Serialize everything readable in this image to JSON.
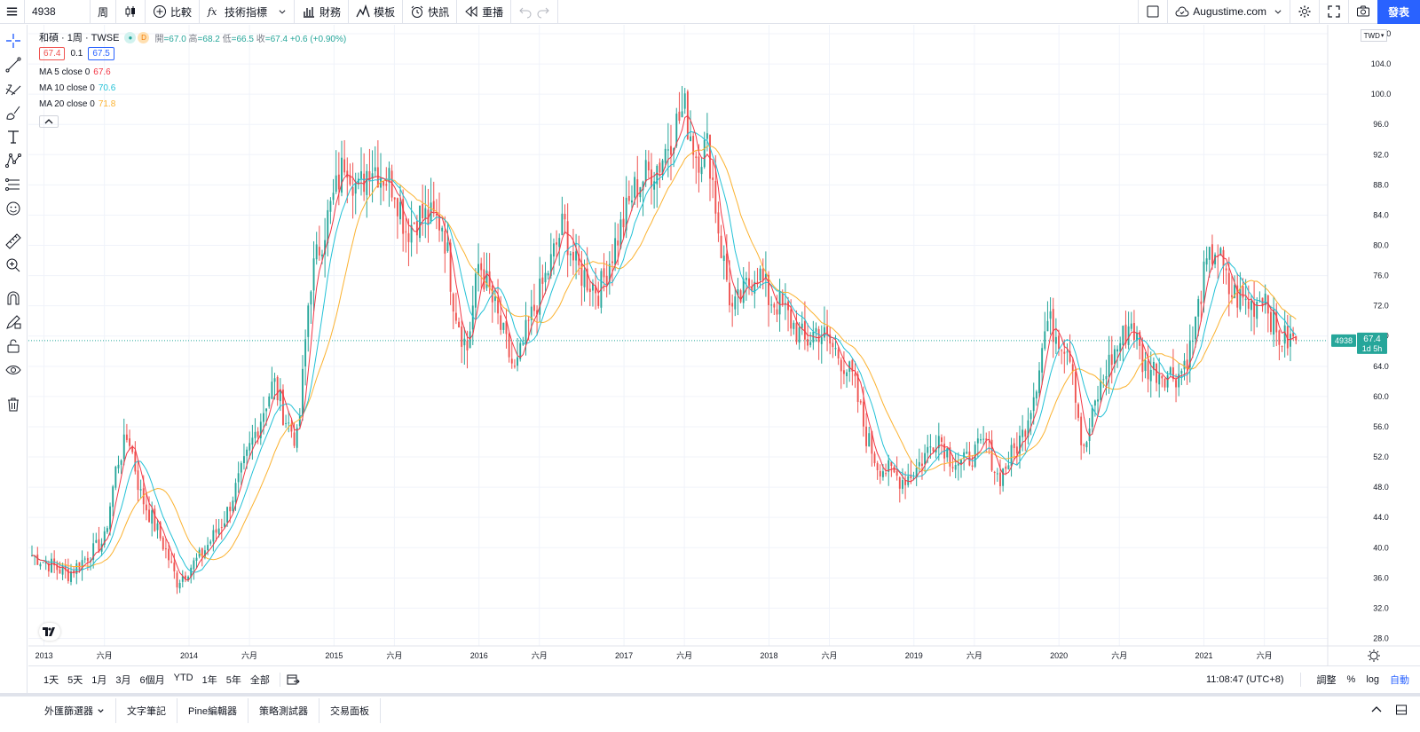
{
  "toolbar": {
    "symbol": "4938",
    "interval": "周",
    "compare_label": "比較",
    "indicators_label": "技術指標",
    "financials_label": "財務",
    "templates_label": "模板",
    "alerts_label": "快訊",
    "replay_label": "重播",
    "layout_name": "Augustime.com",
    "publish_label": "發表"
  },
  "legend": {
    "title": "和碩 · 1周 · TWSE",
    "dot_d": "D",
    "ohlc": {
      "open_label": "開",
      "open": "=67.0",
      "high_label": "高",
      "high": "=68.2",
      "low_label": "低",
      "low": "=66.5",
      "close_label": "收",
      "close": "=67.4",
      "change": "+0.6 (+0.90%)"
    },
    "bid": "67.4",
    "spread": "0.1",
    "ask": "67.5",
    "ma5_label": "MA 5 close 0",
    "ma5_value": "67.6",
    "ma10_label": "MA 10 close 0",
    "ma10_value": "70.6",
    "ma20_label": "MA 20 close 0",
    "ma20_value": "71.8",
    "collapse_icon": "chevron-up-icon"
  },
  "price_axis": {
    "currency": "TWD",
    "ticks": [
      "28.0",
      "32.0",
      "36.0",
      "40.0",
      "44.0",
      "48.0",
      "52.0",
      "56.0",
      "60.0",
      "64.0",
      "68.0",
      "72.0",
      "76.0",
      "80.0",
      "84.0",
      "88.0",
      "92.0",
      "96.0",
      "100.0",
      "104.0",
      "108.0"
    ],
    "last_symbol": "4938",
    "last_price": "67.4",
    "countdown": "1d 5h"
  },
  "time_axis": {
    "labels": [
      "2013",
      "六月",
      "2014",
      "六月",
      "2015",
      "六月",
      "2016",
      "六月",
      "2017",
      "六月",
      "2018",
      "六月",
      "2019",
      "六月",
      "2020",
      "六月",
      "2021",
      "六月"
    ]
  },
  "chart_data": {
    "type": "candlestick",
    "symbol": "4938",
    "ylim": [
      27,
      108
    ],
    "log_scale": false,
    "grid": true,
    "colors": {
      "up": "#26a69a",
      "down": "#ef5350",
      "ma5": "#f23645",
      "ma10": "#22c1d6",
      "ma20": "#fbb230"
    },
    "series_anchors": [
      {
        "d": "2012-12",
        "c": 39
      },
      {
        "d": "2013-03",
        "c": 36.5
      },
      {
        "d": "2013-06",
        "c": 41
      },
      {
        "d": "2013-07",
        "c": 51
      },
      {
        "d": "2013-08",
        "c": 55
      },
      {
        "d": "2013-09",
        "c": 47
      },
      {
        "d": "2013-11",
        "c": 40
      },
      {
        "d": "2013-12",
        "c": 35.5
      },
      {
        "d": "2014-02",
        "c": 39
      },
      {
        "d": "2014-04",
        "c": 44
      },
      {
        "d": "2014-06",
        "c": 53
      },
      {
        "d": "2014-08",
        "c": 62
      },
      {
        "d": "2014-09",
        "c": 57
      },
      {
        "d": "2014-10",
        "c": 54
      },
      {
        "d": "2014-11",
        "c": 75
      },
      {
        "d": "2014-12",
        "c": 81
      },
      {
        "d": "2015-02",
        "c": 92
      },
      {
        "d": "2015-03",
        "c": 87
      },
      {
        "d": "2015-04",
        "c": 91
      },
      {
        "d": "2015-06",
        "c": 88
      },
      {
        "d": "2015-07",
        "c": 82
      },
      {
        "d": "2015-08",
        "c": 84
      },
      {
        "d": "2015-10",
        "c": 83
      },
      {
        "d": "2015-11",
        "c": 72
      },
      {
        "d": "2015-12",
        "c": 66
      },
      {
        "d": "2016-01",
        "c": 78
      },
      {
        "d": "2016-03",
        "c": 68
      },
      {
        "d": "2016-04",
        "c": 63
      },
      {
        "d": "2016-05",
        "c": 69
      },
      {
        "d": "2016-07",
        "c": 78
      },
      {
        "d": "2016-08",
        "c": 83
      },
      {
        "d": "2016-09",
        "c": 77
      },
      {
        "d": "2016-11",
        "c": 74
      },
      {
        "d": "2016-12",
        "c": 79
      },
      {
        "d": "2017-02",
        "c": 88
      },
      {
        "d": "2017-04",
        "c": 91
      },
      {
        "d": "2017-05",
        "c": 95
      },
      {
        "d": "2017-06",
        "c": 98
      },
      {
        "d": "2017-07",
        "c": 92
      },
      {
        "d": "2017-08",
        "c": 93
      },
      {
        "d": "2017-09",
        "c": 80
      },
      {
        "d": "2017-10",
        "c": 71
      },
      {
        "d": "2017-11",
        "c": 74
      },
      {
        "d": "2017-12",
        "c": 77
      },
      {
        "d": "2018-01",
        "c": 73
      },
      {
        "d": "2018-02",
        "c": 72
      },
      {
        "d": "2018-04",
        "c": 67
      },
      {
        "d": "2018-05",
        "c": 69
      },
      {
        "d": "2018-07",
        "c": 65
      },
      {
        "d": "2018-08",
        "c": 62
      },
      {
        "d": "2018-09",
        "c": 55
      },
      {
        "d": "2018-10",
        "c": 51
      },
      {
        "d": "2018-12",
        "c": 49
      },
      {
        "d": "2019-01",
        "c": 50
      },
      {
        "d": "2019-03",
        "c": 55
      },
      {
        "d": "2019-04",
        "c": 52
      },
      {
        "d": "2019-05",
        "c": 51
      },
      {
        "d": "2019-07",
        "c": 54
      },
      {
        "d": "2019-08",
        "c": 49
      },
      {
        "d": "2019-09",
        "c": 52
      },
      {
        "d": "2019-10",
        "c": 55
      },
      {
        "d": "2019-11",
        "c": 61
      },
      {
        "d": "2019-12",
        "c": 70
      },
      {
        "d": "2020-01",
        "c": 68
      },
      {
        "d": "2020-02",
        "c": 66
      },
      {
        "d": "2020-03",
        "c": 52
      },
      {
        "d": "2020-04",
        "c": 59
      },
      {
        "d": "2020-05",
        "c": 64
      },
      {
        "d": "2020-06",
        "c": 67
      },
      {
        "d": "2020-07",
        "c": 70
      },
      {
        "d": "2020-08",
        "c": 64
      },
      {
        "d": "2020-10",
        "c": 63
      },
      {
        "d": "2020-11",
        "c": 63
      },
      {
        "d": "2020-12",
        "c": 67
      },
      {
        "d": "2021-01",
        "c": 76
      },
      {
        "d": "2021-02",
        "c": 80
      },
      {
        "d": "2021-03",
        "c": 74
      },
      {
        "d": "2021-05",
        "c": 72
      },
      {
        "d": "2021-06",
        "c": 74
      },
      {
        "d": "2021-07",
        "c": 68
      },
      {
        "d": "2021-08",
        "c": 67.4
      }
    ],
    "last": {
      "open": 67.0,
      "high": 68.2,
      "low": 66.5,
      "close": 67.4,
      "change": 0.6,
      "change_pct": 0.9
    },
    "moving_averages": [
      {
        "name": "MA 5 close 0",
        "value": 67.6
      },
      {
        "name": "MA 10 close 0",
        "value": 70.6
      },
      {
        "name": "MA 20 close 0",
        "value": 71.8
      }
    ]
  },
  "range_bar": {
    "ranges": [
      "1天",
      "5天",
      "1月",
      "3月",
      "6個月",
      "YTD",
      "1年",
      "5年",
      "全部"
    ],
    "time": "11:08:47 (UTC+8)",
    "adjust": "調整",
    "percent": "%",
    "log": "log",
    "auto": "自動"
  },
  "bottom_tabs": [
    "外匯篩選器",
    "文字筆記",
    "Pine編輯器",
    "策略測試器",
    "交易面板"
  ],
  "left_tools": [
    "crosshair-icon",
    "trendline-icon",
    "fib-icon",
    "brush-icon",
    "text-icon",
    "pattern-icon",
    "prediction-icon",
    "emoji-icon",
    "ruler-icon",
    "zoom-icon",
    "magnet-icon",
    "lock-drawing-icon",
    "lock-icon",
    "eye-icon",
    "trash-icon"
  ]
}
